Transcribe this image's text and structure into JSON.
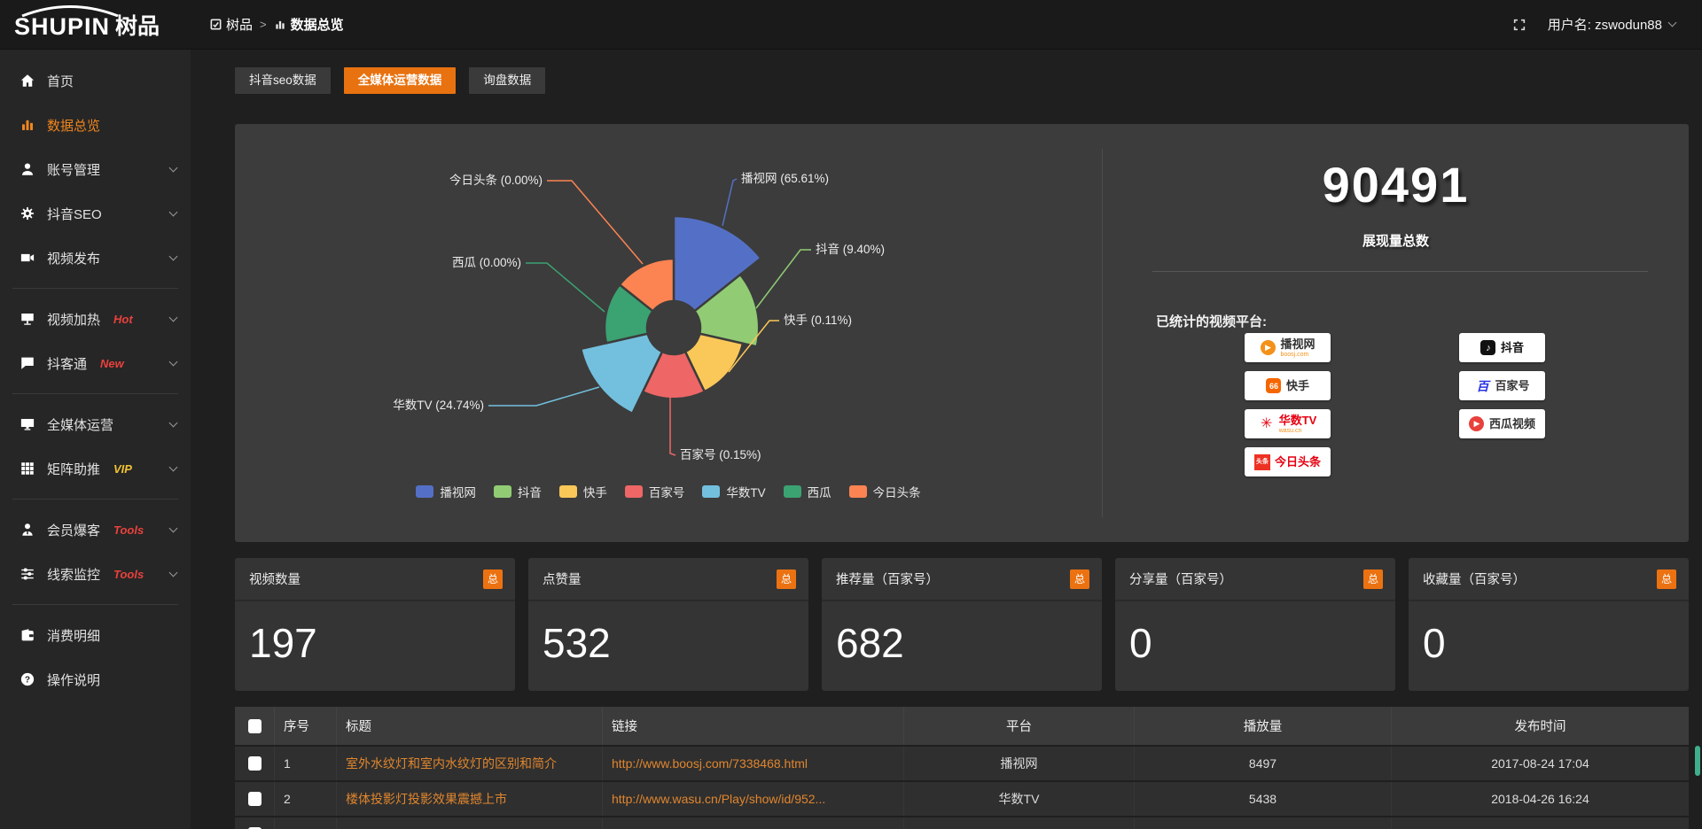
{
  "topbar": {
    "logo_main": "SHUPIN",
    "logo_sub": "树品",
    "breadcrumb_root": "树品",
    "breadcrumb_sep": ">",
    "breadcrumb_current": "数据总览",
    "username": "用户名: zswodun88"
  },
  "sidebar": {
    "items": [
      {
        "label": "首页",
        "icon": "home-icon",
        "badge": "",
        "chevron": false,
        "active": false,
        "divider_after": false
      },
      {
        "label": "数据总览",
        "icon": "bar-chart-icon",
        "badge": "",
        "chevron": false,
        "active": true,
        "divider_after": false
      },
      {
        "label": "账号管理",
        "icon": "user-icon",
        "badge": "",
        "chevron": true,
        "active": false,
        "divider_after": false
      },
      {
        "label": "抖音SEO",
        "icon": "gear-icon",
        "badge": "",
        "chevron": true,
        "active": false,
        "divider_after": false
      },
      {
        "label": "视频发布",
        "icon": "video-icon",
        "badge": "",
        "chevron": true,
        "active": false,
        "divider_after": true
      },
      {
        "label": "视频加热",
        "icon": "screen-icon",
        "badge": "Hot",
        "badge_color": "#e8413c",
        "chevron": true,
        "active": false,
        "divider_after": false
      },
      {
        "label": "抖客通",
        "icon": "chat-icon",
        "badge": "New",
        "badge_color": "#e8413c",
        "chevron": true,
        "active": false,
        "divider_after": true
      },
      {
        "label": "全媒体运营",
        "icon": "monitor-icon",
        "badge": "",
        "chevron": true,
        "active": false,
        "divider_after": false
      },
      {
        "label": "矩阵助推",
        "icon": "grid-icon",
        "badge": "VIP",
        "badge_color": "#f1c232",
        "chevron": true,
        "active": false,
        "divider_after": true
      },
      {
        "label": "会员爆客",
        "icon": "member-icon",
        "badge": "Tools",
        "badge_color": "#e8413c",
        "chevron": true,
        "active": false,
        "divider_after": false
      },
      {
        "label": "线索监控",
        "icon": "sliders-icon",
        "badge": "Tools",
        "badge_color": "#e8413c",
        "chevron": true,
        "active": false,
        "divider_after": true
      },
      {
        "label": "消费明细",
        "icon": "wallet-icon",
        "badge": "",
        "chevron": false,
        "active": false,
        "divider_after": false
      },
      {
        "label": "操作说明",
        "icon": "help-icon",
        "badge": "",
        "chevron": false,
        "active": false,
        "divider_after": false
      }
    ]
  },
  "tabs": [
    {
      "label": "抖音seo数据",
      "active": false
    },
    {
      "label": "全媒体运营数据",
      "active": true
    },
    {
      "label": "询盘数据",
      "active": false
    }
  ],
  "chart_data": {
    "type": "pie",
    "subtype": "nightingale-rose",
    "label_format": "{name} ({percent})",
    "legend_position": "bottom",
    "series": [
      {
        "name": "播视网",
        "value": 65.61,
        "percent": "65.61%",
        "color": "#5470c6"
      },
      {
        "name": "抖音",
        "value": 9.4,
        "percent": "9.40%",
        "color": "#91cc75"
      },
      {
        "name": "快手",
        "value": 0.11,
        "percent": "0.11%",
        "color": "#fac858"
      },
      {
        "name": "百家号",
        "value": 0.15,
        "percent": "0.15%",
        "color": "#ee6666"
      },
      {
        "name": "华数TV",
        "value": 24.74,
        "percent": "24.74%",
        "color": "#73c0de"
      },
      {
        "name": "西瓜",
        "value": 0.0,
        "percent": "0.00%",
        "color": "#3ba272"
      },
      {
        "name": "今日头条",
        "value": 0.0,
        "percent": "0.00%",
        "color": "#fc8452"
      }
    ]
  },
  "summary": {
    "total_value": "90491",
    "total_label": "展现量总数",
    "platforms_title": "已统计的视频平台:",
    "platforms_left": [
      {
        "name": "播视网",
        "sub": "boosj.com",
        "icon": "boosj-icon",
        "name_color": "#333333"
      },
      {
        "name": "快手",
        "sub": "",
        "icon": "kuaishou-icon",
        "name_color": "#333333"
      },
      {
        "name": "华数TV",
        "sub": "wasu.cn",
        "icon": "wasu-icon",
        "name_color": "#e60012"
      },
      {
        "name": "今日头条",
        "sub": "",
        "icon": "toutiao-icon",
        "name_color": "#e60012"
      }
    ],
    "platforms_right": [
      {
        "name": "抖音",
        "sub": "",
        "icon": "douyin-icon",
        "name_color": "#111111"
      },
      {
        "name": "百家号",
        "sub": "",
        "icon": "baijiahao-icon",
        "name_color": "#333333"
      },
      {
        "name": "西瓜视频",
        "sub": "",
        "icon": "xigua-icon",
        "name_color": "#333333"
      }
    ]
  },
  "stat_cards": [
    {
      "title": "视频数量",
      "badge": "总",
      "value": "197"
    },
    {
      "title": "点赞量",
      "badge": "总",
      "value": "532"
    },
    {
      "title": "推荐量（百家号）",
      "badge": "总",
      "value": "682"
    },
    {
      "title": "分享量（百家号）",
      "badge": "总",
      "value": "0"
    },
    {
      "title": "收藏量（百家号）",
      "badge": "总",
      "value": "0"
    }
  ],
  "table": {
    "headers": {
      "num": "序号",
      "title": "标题",
      "link": "链接",
      "platform": "平台",
      "plays": "播放量",
      "time": "发布时间"
    },
    "rows": [
      {
        "num": "1",
        "title": "室外水纹灯和室内水纹灯的区别和简介",
        "link": "http://www.boosj.com/7338468.html",
        "platform": "播视网",
        "plays": "8497",
        "time": "2017-08-24 17:04"
      },
      {
        "num": "2",
        "title": "楼体投影灯投影效果震撼上市",
        "link": "http://www.wasu.cn/Play/show/id/952...",
        "platform": "华数TV",
        "plays": "5438",
        "time": "2018-04-26 16:24"
      }
    ]
  },
  "colors": {
    "accent": "#ec7211",
    "link": "#e0862e",
    "panel": "#3c3c3c"
  }
}
